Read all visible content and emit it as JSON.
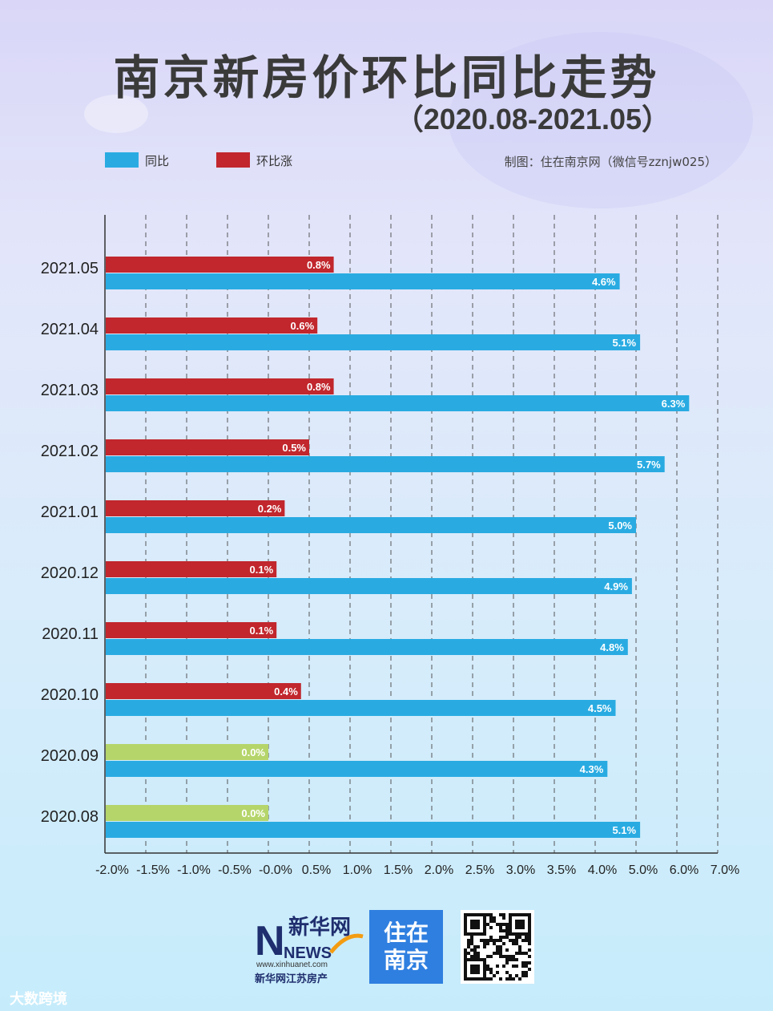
{
  "title": "南京新房价环比同比走势",
  "subtitle": "（2020.08-2021.05）",
  "credit": "制图：住在南京网（微信号zznjw025）",
  "legend": [
    {
      "label": "同比",
      "color": "#29abe2"
    },
    {
      "label": "环比涨",
      "color": "#c1272d"
    }
  ],
  "colors": {
    "yoy": "#29abe2",
    "mom_up": "#c1272d",
    "mom_flat": "#b5d56b"
  },
  "chart_data": {
    "type": "bar",
    "orientation": "horizontal",
    "categories": [
      "2021.05",
      "2021.04",
      "2021.03",
      "2021.02",
      "2021.01",
      "2020.12",
      "2020.11",
      "2020.10",
      "2020.09",
      "2020.08"
    ],
    "series": [
      {
        "name": "环比涨",
        "values": [
          0.8,
          0.6,
          0.8,
          0.5,
          0.2,
          0.1,
          0.1,
          0.4,
          0.0,
          0.0
        ],
        "labels": [
          "0.8%",
          "0.6%",
          "0.8%",
          "0.5%",
          "0.2%",
          "0.1%",
          "0.1%",
          "0.4%",
          "0.0%",
          "0.0%"
        ]
      },
      {
        "name": "同比",
        "values": [
          4.6,
          5.1,
          6.3,
          5.7,
          5.0,
          4.9,
          4.8,
          4.5,
          4.3,
          5.1
        ],
        "labels": [
          "4.6%",
          "5.1%",
          "6.3%",
          "5.7%",
          "5.0%",
          "4.9%",
          "4.8%",
          "4.5%",
          "4.3%",
          "5.1%"
        ]
      }
    ],
    "x_ticks": [
      "-2.0%",
      "-1.5%",
      "-1.0%",
      "-0.5%",
      "-0.0%",
      "0.5%",
      "1.0%",
      "1.5%",
      "2.0%",
      "2.5%",
      "3.0%",
      "3.5%",
      "4.0%",
      "5.0%",
      "6.0%",
      "7.0%"
    ],
    "xlim": [
      -2.0,
      7.0
    ],
    "grid": "vertical dashed"
  },
  "footer": {
    "xinhua_cn": "新华网",
    "xinhua_en": "NEWS",
    "xinhua_url": "www.xinhuanet.com",
    "xinhua_sub": "新华网江苏房产",
    "brand_line1": "住在",
    "brand_line2": "南京",
    "source_mark": "大数跨境"
  }
}
